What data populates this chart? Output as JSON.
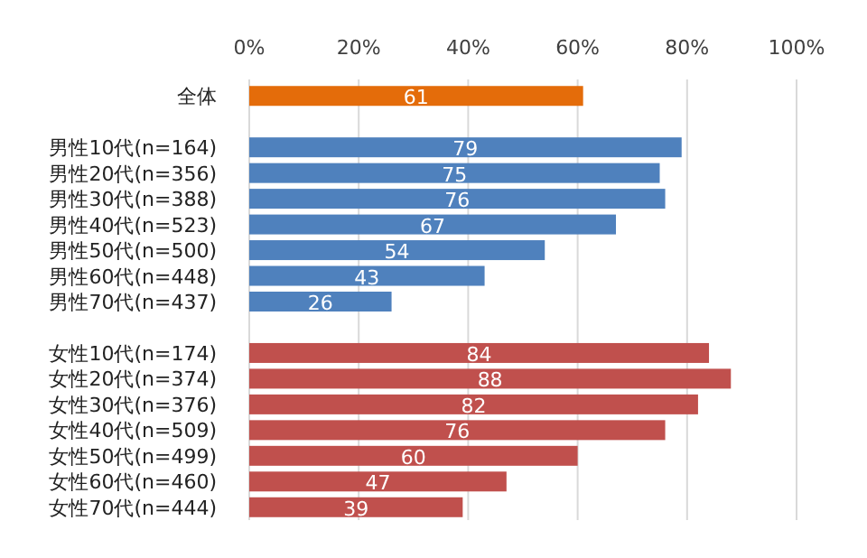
{
  "chart_data": {
    "type": "bar",
    "orientation": "horizontal",
    "categories": [
      "全体",
      null,
      "男性10代(n=164)",
      "男性20代(n=356)",
      "男性30代(n=388)",
      "男性40代(n=523)",
      "男性50代(n=500)",
      "男性60代(n=448)",
      "男性70代(n=437)",
      null,
      "女性10代(n=174)",
      "女性20代(n=374)",
      "女性30代(n=376)",
      "女性40代(n=509)",
      "女性50代(n=499)",
      "女性60代(n=460)",
      "女性70代(n=444)"
    ],
    "values": [
      61,
      null,
      79,
      75,
      76,
      67,
      54,
      43,
      26,
      null,
      84,
      88,
      82,
      76,
      60,
      47,
      39
    ],
    "colors": [
      "#e46c0a",
      null,
      "#4f81bd",
      "#4f81bd",
      "#4f81bd",
      "#4f81bd",
      "#4f81bd",
      "#4f81bd",
      "#4f81bd",
      null,
      "#c0504d",
      "#c0504d",
      "#c0504d",
      "#c0504d",
      "#c0504d",
      "#c0504d",
      "#c0504d"
    ],
    "xlim": [
      0,
      100
    ],
    "xticks": [
      {
        "value": 0,
        "label": "0%"
      },
      {
        "value": 20,
        "label": "20%"
      },
      {
        "value": 40,
        "label": "40%"
      },
      {
        "value": 60,
        "label": "60%"
      },
      {
        "value": 80,
        "label": "80%"
      },
      {
        "value": 100,
        "label": "100%"
      }
    ],
    "grid": "x",
    "data_labels": true
  }
}
